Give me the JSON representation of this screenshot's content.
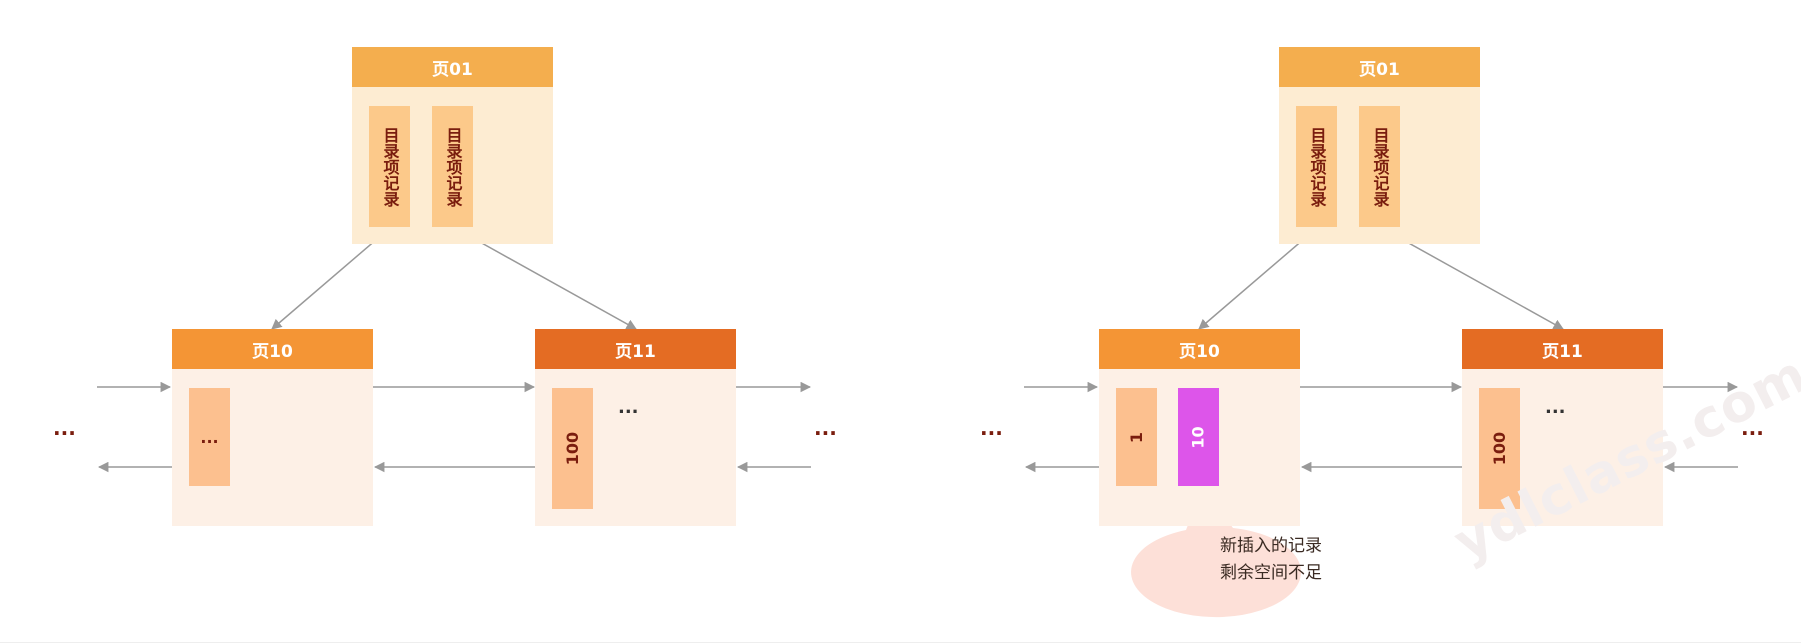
{
  "colors": {
    "root_header": "#f4ae4e",
    "root_body": "#fdecd2",
    "dir_record": "#fcc98a",
    "dir_text": "#7a1d0e",
    "page10_header": "#f49535",
    "page11_header": "#e46c23",
    "leaf_body": "#fdf0e6",
    "leaf_record": "#fcc08f",
    "new_record": "#dd55ea",
    "bubble": "#fde0d8",
    "arrow_gray": "#999999",
    "arrow_dark": "#555555"
  },
  "left": {
    "root": {
      "title": "页01",
      "records": [
        "目录项记录",
        "目录项记录"
      ]
    },
    "page10": {
      "title": "页10",
      "records": [
        "..."
      ]
    },
    "page11": {
      "title": "页11",
      "records": [
        "100"
      ],
      "trailing": "..."
    },
    "ellipsis_left": "...",
    "ellipsis_right": "..."
  },
  "right": {
    "root": {
      "title": "页01",
      "records": [
        "目录项记录",
        "目录项记录"
      ]
    },
    "page10": {
      "title": "页10",
      "records": [
        "1",
        "10"
      ]
    },
    "page11": {
      "title": "页11",
      "records": [
        "100"
      ],
      "trailing": "..."
    },
    "ellipsis_left": "...",
    "ellipsis_right": "...",
    "callout": [
      "新插入的记录",
      "剩余空间不足"
    ]
  },
  "watermark": "ydlclass.com"
}
